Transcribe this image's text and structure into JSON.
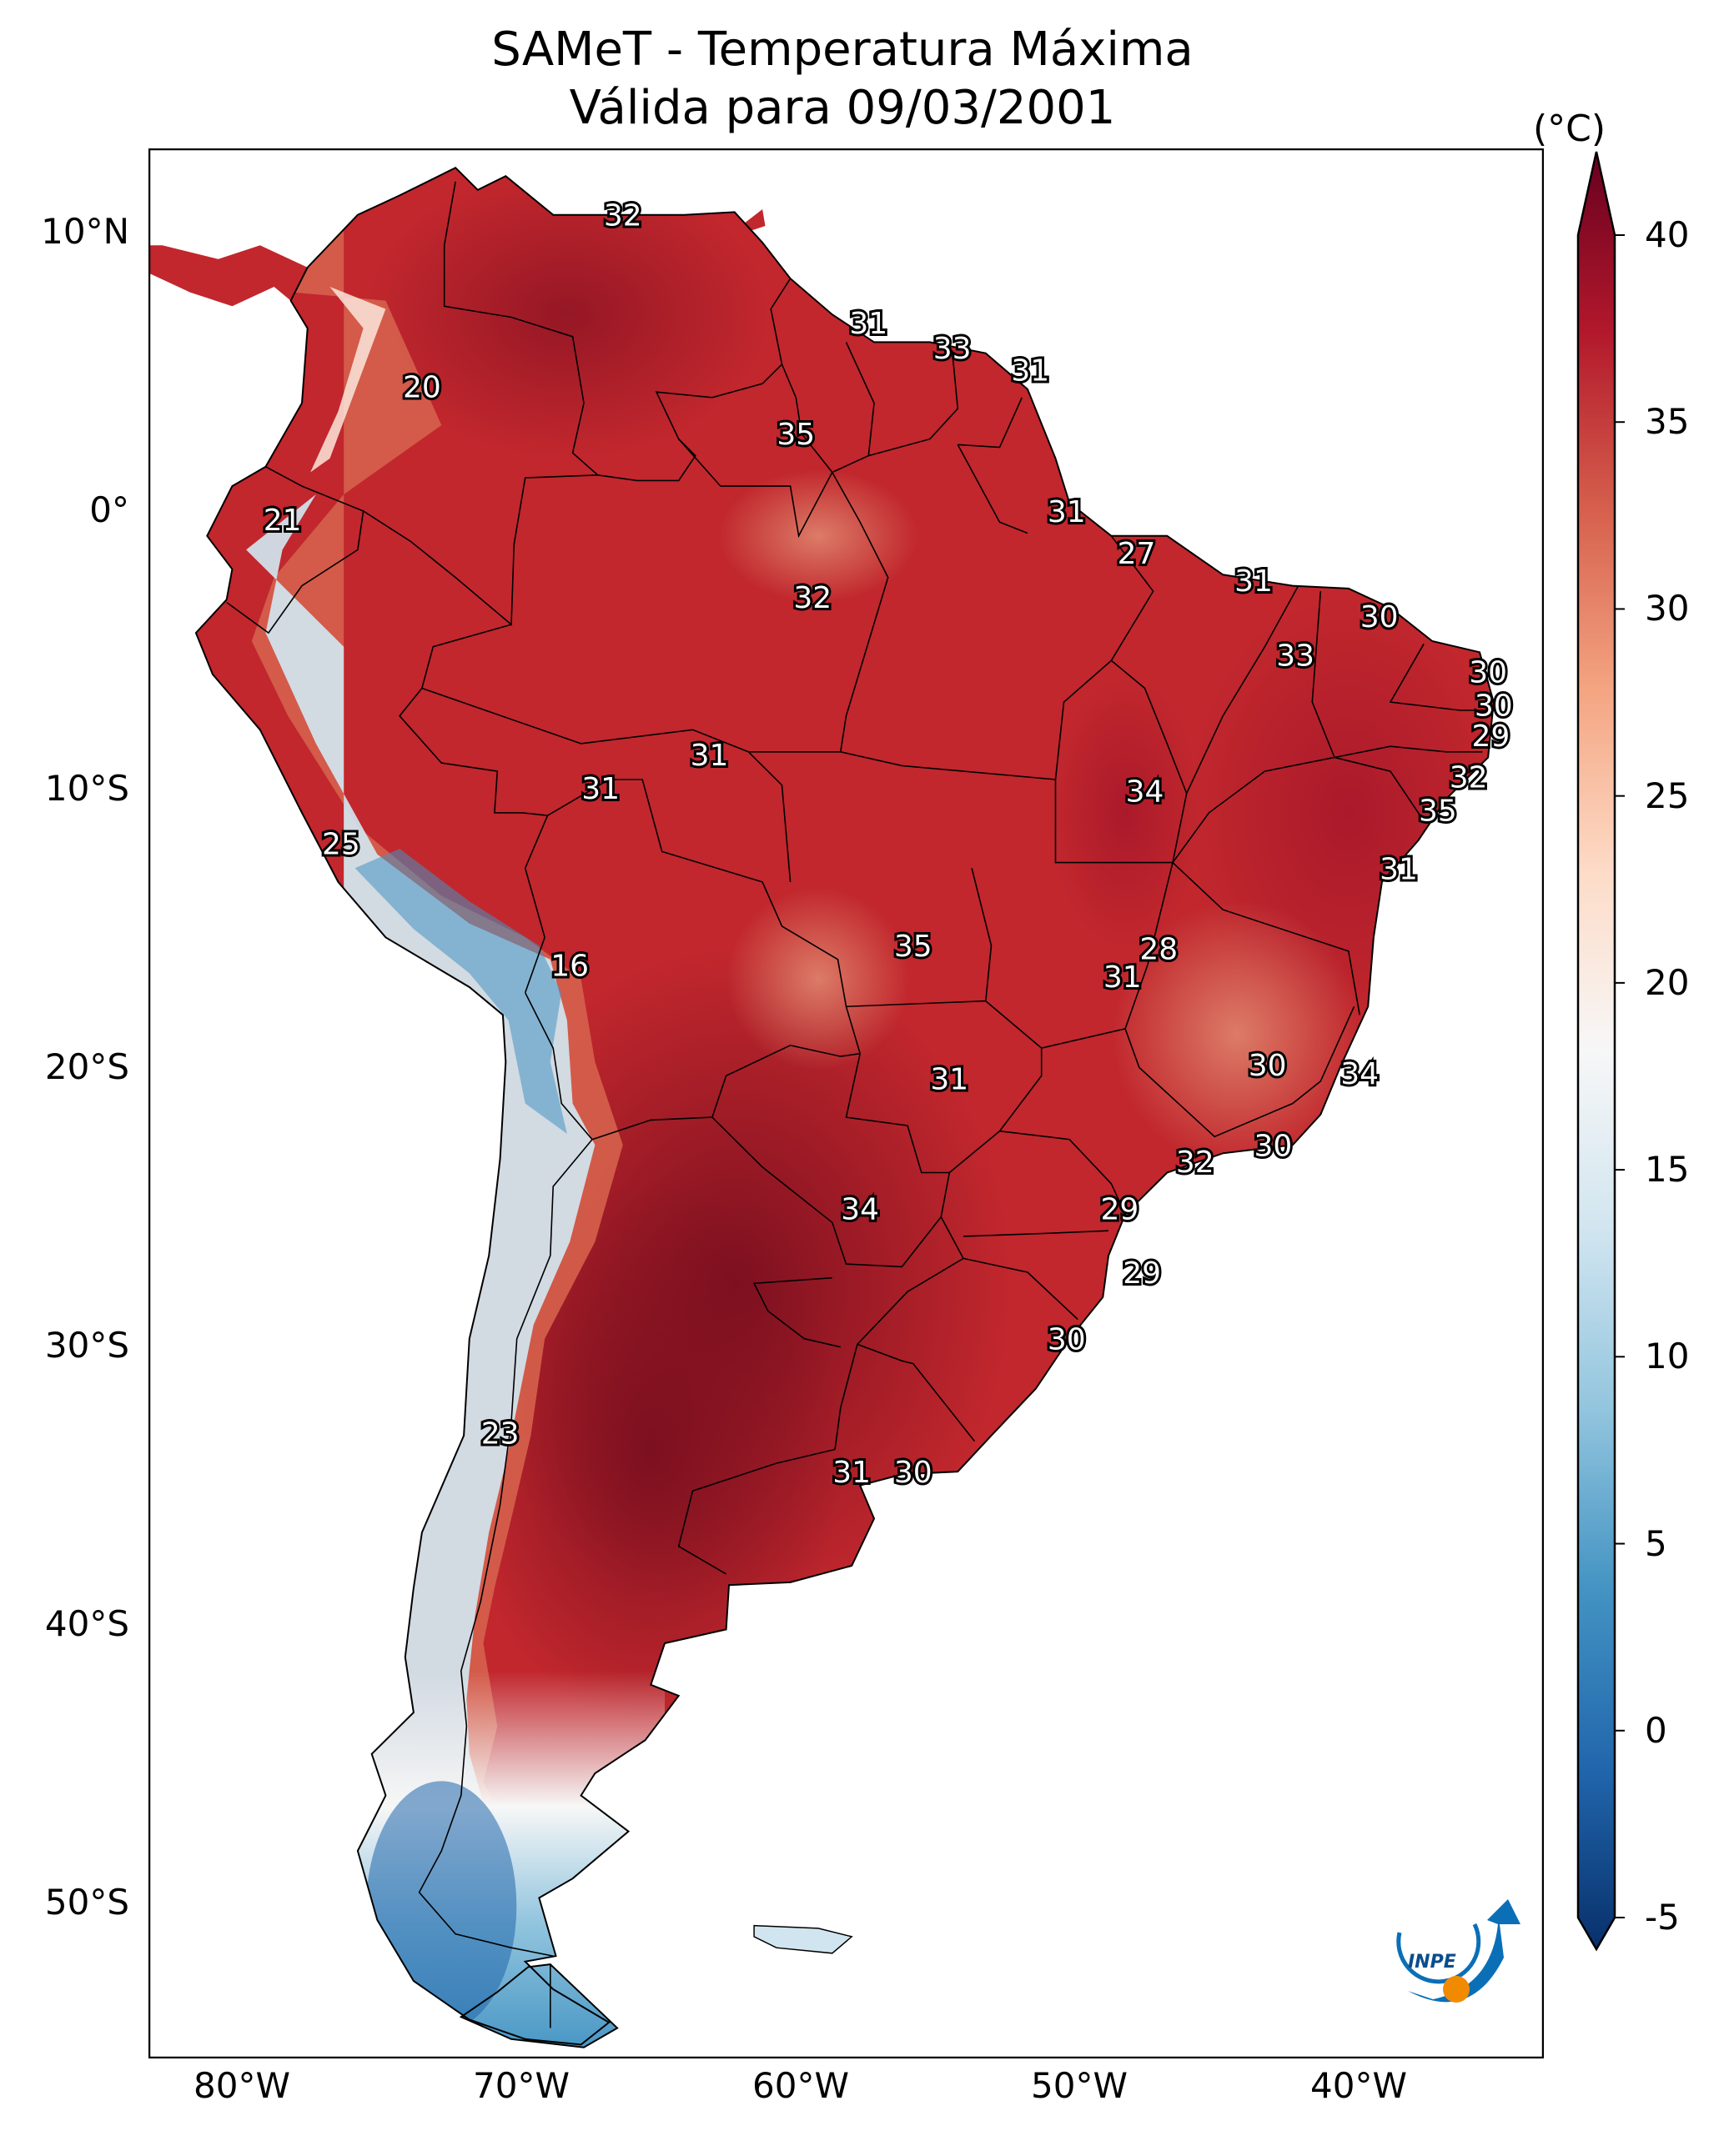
{
  "title": {
    "line1": "SAMeT - Temperatura Máxima",
    "line2": "Válida para 09/03/2001"
  },
  "map": {
    "region": "South America",
    "lon_range": [
      -83,
      -33
    ],
    "lat_range": [
      -56,
      13
    ],
    "lat_ticks": [
      "10°N",
      "0°",
      "10°S",
      "20°S",
      "30°S",
      "40°S",
      "50°S"
    ],
    "lon_ticks": [
      "80°W",
      "70°W",
      "60°W",
      "50°W",
      "40°W"
    ],
    "labels": [
      {
        "text": "32",
        "lon": -66.0,
        "lat": 10.6
      },
      {
        "text": "31",
        "lon": -57.2,
        "lat": 6.7
      },
      {
        "text": "33",
        "lon": -54.2,
        "lat": 5.8
      },
      {
        "text": "31",
        "lon": -51.4,
        "lat": 5.0
      },
      {
        "text": "20",
        "lon": -73.2,
        "lat": 4.4
      },
      {
        "text": "35",
        "lon": -59.8,
        "lat": 2.7
      },
      {
        "text": "21",
        "lon": -78.2,
        "lat": -0.4
      },
      {
        "text": "31",
        "lon": -50.1,
        "lat": -0.1
      },
      {
        "text": "27",
        "lon": -47.6,
        "lat": -1.6
      },
      {
        "text": "31",
        "lon": -43.4,
        "lat": -2.6
      },
      {
        "text": "32",
        "lon": -59.2,
        "lat": -3.2
      },
      {
        "text": "30",
        "lon": -38.9,
        "lat": -3.9
      },
      {
        "text": "33",
        "lon": -41.9,
        "lat": -5.3
      },
      {
        "text": "30",
        "lon": -35.0,
        "lat": -5.9
      },
      {
        "text": "30",
        "lon": -34.8,
        "lat": -7.1
      },
      {
        "text": "29",
        "lon": -34.9,
        "lat": -8.2
      },
      {
        "text": "31",
        "lon": -62.9,
        "lat": -8.9
      },
      {
        "text": "32",
        "lon": -35.7,
        "lat": -9.7
      },
      {
        "text": "31",
        "lon": -66.8,
        "lat": -10.1
      },
      {
        "text": "34",
        "lon": -47.3,
        "lat": -10.2
      },
      {
        "text": "35",
        "lon": -36.8,
        "lat": -10.9
      },
      {
        "text": "25",
        "lon": -76.1,
        "lat": -12.1
      },
      {
        "text": "31",
        "lon": -38.2,
        "lat": -13.0
      },
      {
        "text": "35",
        "lon": -55.6,
        "lat": -15.8
      },
      {
        "text": "28",
        "lon": -46.8,
        "lat": -15.9
      },
      {
        "text": "16",
        "lon": -67.9,
        "lat": -16.5
      },
      {
        "text": "31",
        "lon": -48.1,
        "lat": -16.9
      },
      {
        "text": "30",
        "lon": -42.9,
        "lat": -20.1
      },
      {
        "text": "34",
        "lon": -39.6,
        "lat": -20.4
      },
      {
        "text": "31",
        "lon": -54.3,
        "lat": -20.6
      },
      {
        "text": "30",
        "lon": -42.7,
        "lat": -23.0
      },
      {
        "text": "32",
        "lon": -45.5,
        "lat": -23.6
      },
      {
        "text": "34",
        "lon": -57.5,
        "lat": -25.3
      },
      {
        "text": "29",
        "lon": -48.2,
        "lat": -25.3
      },
      {
        "text": "29",
        "lon": -47.4,
        "lat": -27.6
      },
      {
        "text": "30",
        "lon": -50.1,
        "lat": -30.0
      },
      {
        "text": "23",
        "lon": -70.4,
        "lat": -33.4
      },
      {
        "text": "31",
        "lon": -57.8,
        "lat": -34.8
      },
      {
        "text": "30",
        "lon": -55.6,
        "lat": -34.8
      }
    ]
  },
  "colorbar": {
    "unit": "(°C)",
    "min": -5,
    "max": 40,
    "ticks": [
      "-5",
      "0",
      "5",
      "10",
      "15",
      "20",
      "25",
      "30",
      "35",
      "40"
    ],
    "colormap": [
      "#08306b",
      "#2166ac",
      "#4393c3",
      "#92c5de",
      "#d1e5f0",
      "#f7f7f7",
      "#fddbc7",
      "#f4a582",
      "#d6604d",
      "#b2182b",
      "#67001f"
    ]
  },
  "colors": {
    "warm_dark": "#7a0f1f",
    "warm": "#c1272d",
    "warm_light": "#d6604d",
    "cool": "#d1e5f0",
    "cold": "#4393c3",
    "coldest": "#2166ac",
    "border": "#000000",
    "logo_blue": "#0a6fb7",
    "logo_orange": "#f28a00"
  },
  "logo": {
    "text": "INPE"
  }
}
